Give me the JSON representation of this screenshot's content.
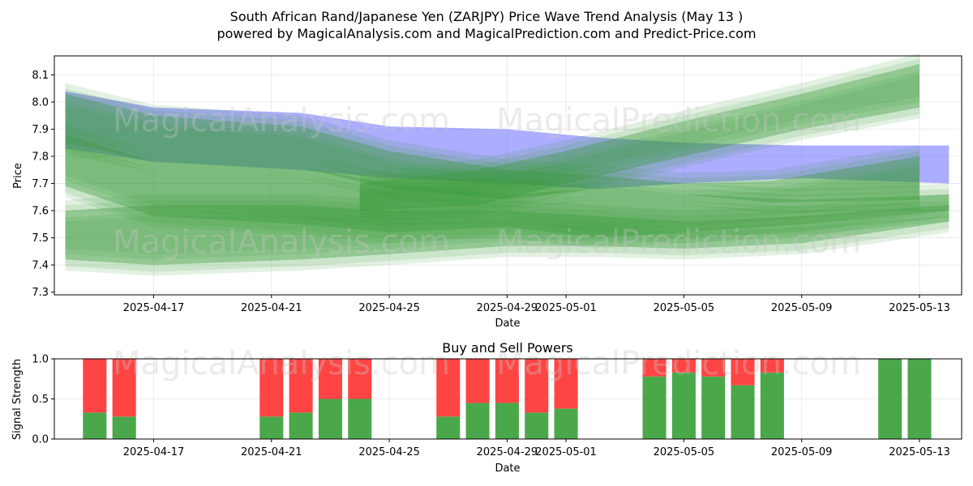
{
  "header": {
    "title_line1": "South African Rand/Japanese Yen (ZARJPY) Price Wave Trend Analysis (May 13 )",
    "title_line2": "powered by MagicalAnalysis.com and MagicalPrediction.com and Predict-Price.com"
  },
  "watermarks": [
    "MagicalAnalysis.com",
    "MagicalPrediction.com"
  ],
  "colors": {
    "blue_band": "#6a6aff",
    "green_band": "#3a9a3a",
    "buy": "#4aa84a",
    "sell": "#ff4444",
    "grid": "#e6e6e6"
  },
  "chart_data": [
    {
      "type": "area",
      "title": "",
      "xlabel": "Date",
      "ylabel": "Price",
      "ylim": [
        7.29,
        8.17
      ],
      "xlim": [
        "2025-04-13",
        "2025-05-14"
      ],
      "yticks": [
        "7.3",
        "7.4",
        "7.5",
        "7.6",
        "7.7",
        "7.8",
        "7.9",
        "8.0",
        "8.1"
      ],
      "xticks": [
        "2025-04-17",
        "2025-04-21",
        "2025-04-25",
        "2025-04-29",
        "2025-05-01",
        "2025-05-05",
        "2025-05-09",
        "2025-05-13"
      ],
      "series": [
        {
          "name": "blue-band",
          "x": [
            "2025-04-14",
            "2025-04-17",
            "2025-04-22",
            "2025-04-25",
            "2025-04-29",
            "2025-05-02",
            "2025-05-05",
            "2025-05-09",
            "2025-05-14"
          ],
          "upper": [
            8.04,
            7.98,
            7.96,
            7.91,
            7.9,
            7.87,
            7.85,
            7.84,
            7.84
          ],
          "lower": [
            7.83,
            7.78,
            7.75,
            7.72,
            7.7,
            7.68,
            7.7,
            7.72,
            7.7
          ]
        },
        {
          "name": "green-upper-band",
          "x": [
            "2025-04-14",
            "2025-04-17",
            "2025-04-22",
            "2025-04-25",
            "2025-04-29",
            "2025-05-02",
            "2025-05-05",
            "2025-05-08",
            "2025-05-13"
          ],
          "upper": [
            8.03,
            7.95,
            7.91,
            7.82,
            7.75,
            7.73,
            7.7,
            7.71,
            7.8
          ],
          "lower": [
            7.85,
            7.78,
            7.76,
            7.68,
            7.64,
            7.68,
            7.66,
            7.63,
            7.64
          ]
        },
        {
          "name": "green-mid-band",
          "x": [
            "2025-04-14",
            "2025-04-17",
            "2025-04-22",
            "2025-04-25",
            "2025-04-29",
            "2025-05-02",
            "2025-05-05",
            "2025-05-09",
            "2025-05-14"
          ],
          "upper": [
            7.88,
            7.78,
            7.76,
            7.7,
            7.66,
            7.68,
            7.66,
            7.64,
            7.66
          ],
          "lower": [
            7.69,
            7.58,
            7.55,
            7.52,
            7.54,
            7.5,
            7.52,
            7.55,
            7.6
          ]
        },
        {
          "name": "green-lower-band",
          "x": [
            "2025-04-14",
            "2025-04-17",
            "2025-04-22",
            "2025-04-25",
            "2025-04-29",
            "2025-05-02",
            "2025-05-05",
            "2025-05-09",
            "2025-05-14"
          ],
          "upper": [
            7.6,
            7.62,
            7.62,
            7.6,
            7.6,
            7.58,
            7.56,
            7.58,
            7.62
          ],
          "lower": [
            7.42,
            7.4,
            7.42,
            7.44,
            7.47,
            7.47,
            7.46,
            7.48,
            7.56
          ]
        },
        {
          "name": "green-rising-band",
          "x": [
            "2025-04-24",
            "2025-04-28",
            "2025-05-01",
            "2025-05-05",
            "2025-05-09",
            "2025-05-13"
          ],
          "upper": [
            7.7,
            7.75,
            7.82,
            7.93,
            8.03,
            8.14
          ],
          "lower": [
            7.6,
            7.62,
            7.7,
            7.8,
            7.9,
            7.98
          ]
        }
      ]
    },
    {
      "type": "bar",
      "title": "Buy and Sell Powers",
      "xlabel": "Date",
      "ylabel": "Signal Strength",
      "ylim": [
        0,
        1
      ],
      "yticks": [
        "0.0",
        "0.5",
        "1.0"
      ],
      "xticks": [
        "2025-04-17",
        "2025-04-21",
        "2025-04-25",
        "2025-04-29",
        "2025-05-01",
        "2025-05-05",
        "2025-05-09",
        "2025-05-13"
      ],
      "categories": [
        "2025-04-15",
        "2025-04-16",
        "2025-04-21",
        "2025-04-22",
        "2025-04-23",
        "2025-04-24",
        "2025-04-27",
        "2025-04-28",
        "2025-04-29",
        "2025-04-30",
        "2025-05-01",
        "2025-05-04",
        "2025-05-05",
        "2025-05-06",
        "2025-05-07",
        "2025-05-08",
        "2025-05-12",
        "2025-05-13"
      ],
      "series": [
        {
          "name": "Buy",
          "values": [
            0.33,
            0.28,
            0.28,
            0.33,
            0.5,
            0.5,
            0.28,
            0.45,
            0.45,
            0.33,
            0.38,
            0.78,
            0.83,
            0.78,
            0.67,
            0.83,
            1.0,
            1.0
          ]
        },
        {
          "name": "Sell",
          "values": [
            0.67,
            0.72,
            0.72,
            0.67,
            0.5,
            0.5,
            0.72,
            0.55,
            0.55,
            0.67,
            0.62,
            0.22,
            0.17,
            0.22,
            0.33,
            0.17,
            0.0,
            0.0
          ]
        }
      ]
    }
  ]
}
